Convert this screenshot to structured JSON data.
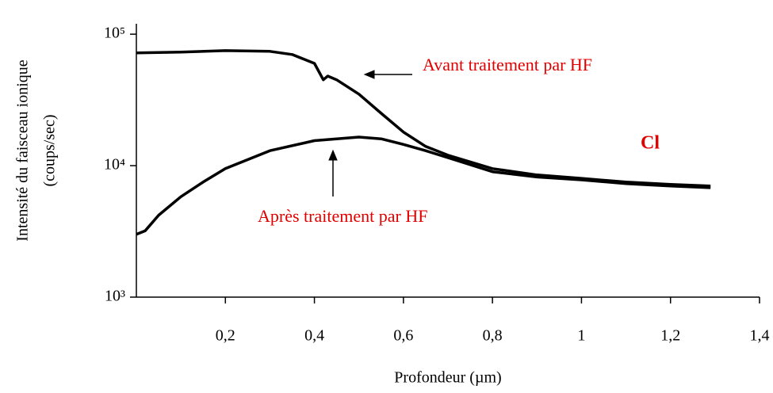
{
  "chart_data": {
    "type": "line",
    "xlabel": "Profondeur (µm)",
    "ylabel": [
      "Intensité du faisceau ionique",
      "(coups/sec)"
    ],
    "log_y": true,
    "xlim": [
      0,
      1.4
    ],
    "xticks": [
      {
        "value": 0.2,
        "label": "0,2"
      },
      {
        "value": 0.4,
        "label": "0,4"
      },
      {
        "value": 0.6,
        "label": "0,6"
      },
      {
        "value": 0.8,
        "label": "0,8"
      },
      1,
      {
        "value": 1.2,
        "label": "1,2"
      },
      {
        "value": 1.4,
        "label": "1,4"
      }
    ],
    "ylim": [
      1000,
      120000
    ],
    "yticks": [
      {
        "value": 1000,
        "label": "10³"
      },
      {
        "value": 10000,
        "label": "10⁴"
      },
      {
        "value": 100000,
        "label": "10⁵"
      }
    ],
    "annotations": [
      "Avant traitement par HF",
      "Après traitement par HF",
      "Cl"
    ],
    "series": [
      {
        "name": "Avant traitement par HF",
        "color": "#000000",
        "x": [
          0,
          0.1,
          0.2,
          0.3,
          0.35,
          0.4,
          0.42,
          0.43,
          0.45,
          0.5,
          0.55,
          0.6,
          0.65,
          0.7,
          0.8,
          0.9,
          1.0,
          1.1,
          1.2,
          1.29
        ],
        "values": [
          72000,
          73000,
          75000,
          74000,
          70000,
          60000,
          45000,
          48000,
          45000,
          35000,
          25000,
          18000,
          14000,
          12000,
          9500,
          8500,
          8000,
          7500,
          7200,
          7000
        ]
      },
      {
        "name": "Après traitement par HF",
        "color": "#000000",
        "x": [
          0,
          0.02,
          0.05,
          0.1,
          0.15,
          0.2,
          0.3,
          0.4,
          0.5,
          0.55,
          0.6,
          0.65,
          0.7,
          0.8,
          0.9,
          1.0,
          1.1,
          1.2,
          1.29
        ],
        "values": [
          3000,
          3200,
          4200,
          5800,
          7500,
          9500,
          13000,
          15500,
          16500,
          16000,
          14500,
          13000,
          11500,
          9000,
          8200,
          7800,
          7300,
          7000,
          6800
        ]
      }
    ]
  }
}
